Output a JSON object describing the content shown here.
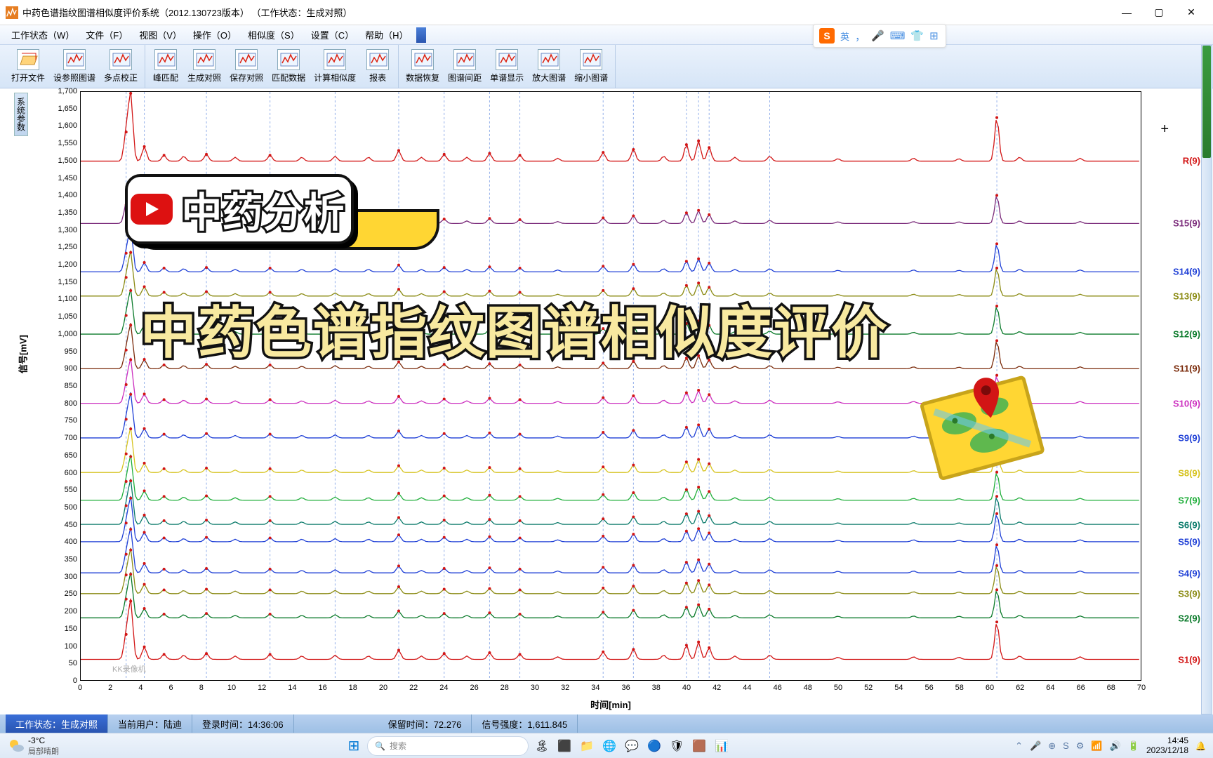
{
  "window": {
    "title": "中药色谱指纹图谱相似度评价系统（2012.130723版本）  （工作状态：生成对照）",
    "icon_color": "#e67e22"
  },
  "menu": [
    "工作状态（W）",
    "文件（F）",
    "视图（V）",
    "操作（O）",
    "相似度（S）",
    "设置（C）",
    "帮助（H）"
  ],
  "ime": {
    "logo": "S",
    "mode": "英",
    "icons": [
      "🎤",
      "⌨",
      "👕",
      "⊞"
    ]
  },
  "toolbar_groups": [
    [
      "打开文件",
      "设参照图谱",
      "多点校正"
    ],
    [
      "峰匹配",
      "生成对照",
      "保存对照",
      "匹配数据",
      "计算相似度",
      "报表"
    ],
    [
      "数据恢复",
      "图谱间距",
      "单谱显示",
      "放大图谱",
      "缩小图谱"
    ]
  ],
  "sidebar_tab": "系统参数",
  "chart": {
    "y_label": "信号[mV]",
    "x_label": "时间[min]",
    "y_min": 0,
    "y_max": 1700,
    "y_step": 50,
    "x_min": 0,
    "x_max": 70,
    "x_step": 2,
    "baseline_spacing": 110,
    "plot_bg": "#ffffff",
    "vlines_x": [
      3.0,
      4.2,
      8.3,
      12.5,
      16.8,
      21.0,
      24.0,
      27.0,
      29.0,
      34.5,
      36.5,
      40.0,
      40.8,
      41.5,
      45.5,
      60.5
    ],
    "peak_template": [
      {
        "x": 3.0,
        "h": 60
      },
      {
        "x": 3.3,
        "h": 140
      },
      {
        "x": 4.2,
        "h": 30
      },
      {
        "x": 5.5,
        "h": 12
      },
      {
        "x": 6.8,
        "h": 10
      },
      {
        "x": 8.3,
        "h": 14
      },
      {
        "x": 10.2,
        "h": 8
      },
      {
        "x": 12.5,
        "h": 12
      },
      {
        "x": 14.6,
        "h": 8
      },
      {
        "x": 16.8,
        "h": 10
      },
      {
        "x": 19.0,
        "h": 8
      },
      {
        "x": 21.0,
        "h": 22
      },
      {
        "x": 22.5,
        "h": 8
      },
      {
        "x": 24.0,
        "h": 14
      },
      {
        "x": 25.5,
        "h": 8
      },
      {
        "x": 27.0,
        "h": 16
      },
      {
        "x": 29.0,
        "h": 12
      },
      {
        "x": 31.5,
        "h": 6
      },
      {
        "x": 34.5,
        "h": 18
      },
      {
        "x": 36.5,
        "h": 24
      },
      {
        "x": 38.5,
        "h": 10
      },
      {
        "x": 40.0,
        "h": 34
      },
      {
        "x": 40.8,
        "h": 42
      },
      {
        "x": 41.5,
        "h": 28
      },
      {
        "x": 43.2,
        "h": 8
      },
      {
        "x": 45.5,
        "h": 10
      },
      {
        "x": 50.0,
        "h": 5
      },
      {
        "x": 55.0,
        "h": 6
      },
      {
        "x": 58.0,
        "h": 5
      },
      {
        "x": 60.5,
        "h": 90
      },
      {
        "x": 62.0,
        "h": 8
      },
      {
        "x": 66.0,
        "h": 6
      }
    ],
    "series": [
      {
        "name": "S1(9)",
        "color": "#d21515",
        "baseline": 60
      },
      {
        "name": "S2(9)",
        "color": "#0a7a2a",
        "baseline": 180
      },
      {
        "name": "S3(9)",
        "color": "#8a8a12",
        "baseline": 250
      },
      {
        "name": "S4(9)",
        "color": "#1e3fd6",
        "baseline": 310
      },
      {
        "name": "S5(9)",
        "color": "#1e3fd6",
        "baseline": 400
      },
      {
        "name": "S6(9)",
        "color": "#0a7a6a",
        "baseline": 450
      },
      {
        "name": "S7(9)",
        "color": "#1fae3a",
        "baseline": 520
      },
      {
        "name": "S8(9)",
        "color": "#d6c31e",
        "baseline": 600
      },
      {
        "name": "S9(9)",
        "color": "#1e3fd6",
        "baseline": 700
      },
      {
        "name": "S10(9)",
        "color": "#cc2fbf",
        "baseline": 800
      },
      {
        "name": "S11(9)",
        "color": "#7a2a0a",
        "baseline": 900
      },
      {
        "name": "S12(9)",
        "color": "#0a7a2a",
        "baseline": 1000
      },
      {
        "name": "S13(9)",
        "color": "#8a8a12",
        "baseline": 1110
      },
      {
        "name": "S14(9)",
        "color": "#1e3fd6",
        "baseline": 1180
      },
      {
        "name": "S15(9)",
        "color": "#7a2a7a",
        "baseline": 1320
      },
      {
        "name": "R(9)",
        "color": "#d21515",
        "baseline": 1500
      }
    ]
  },
  "overlays": {
    "title": "中药分析",
    "subtitle": "中药色谱指纹图谱相似度评价"
  },
  "statusbar": {
    "state": "工作状态：生成对照",
    "user": "当前用户：陆迪",
    "login": "登录时间：14:36:06",
    "retention": "保留时间：72.276",
    "signal": "信号强度：1,611.845"
  },
  "taskbar": {
    "temp": "-3°C",
    "condition": "局部晴朗",
    "search_placeholder": "搜索",
    "tray_icons": [
      "⌃",
      "🎤",
      "⊕",
      "S",
      "⚙",
      "📶",
      "🔊",
      "🔋"
    ],
    "time": "14:45",
    "date": "2023/12/18",
    "app_icons": [
      "⊞",
      "🔍",
      "🏝",
      "⬛",
      "📁",
      "🌐",
      "💬",
      "🔵",
      "🛡",
      "🟫",
      "📊"
    ]
  },
  "watermark": "KK录像机"
}
